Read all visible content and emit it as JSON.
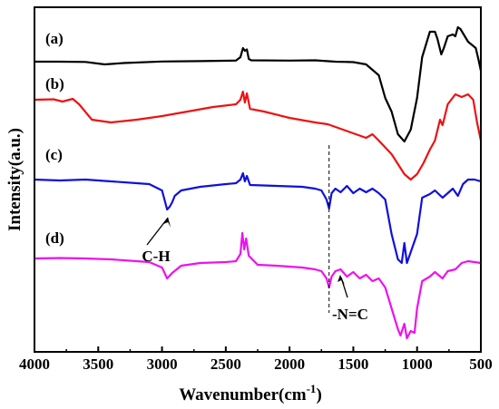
{
  "chart_data": {
    "type": "line",
    "title": "",
    "xlabel": "Wavenumber(cm",
    "xlabel_sup": "-1",
    "xlabel_close": ")",
    "ylabel": "Intensity(a.u.)",
    "xlim": [
      4000,
      500
    ],
    "x_reversed": true,
    "y_ticks": false,
    "x_ticks": [
      "4000",
      "3500",
      "3000",
      "2500",
      "2000",
      "1500",
      "1000",
      "500"
    ],
    "grid": false,
    "legend": "none",
    "series": [
      {
        "label": "(a)",
        "color": "#000000",
        "points": [
          [
            4000,
            0.0
          ],
          [
            3800,
            0.0
          ],
          [
            3600,
            -0.3
          ],
          [
            3450,
            -3.0
          ],
          [
            3300,
            -1.5
          ],
          [
            3000,
            0.2
          ],
          [
            2700,
            0.6
          ],
          [
            2420,
            1.2
          ],
          [
            2385,
            5.0
          ],
          [
            2365,
            15.0
          ],
          [
            2350,
            12.0
          ],
          [
            2335,
            13.5
          ],
          [
            2320,
            3.0
          ],
          [
            2300,
            1.5
          ],
          [
            2000,
            1.2
          ],
          [
            1800,
            1.5
          ],
          [
            1640,
            0.0
          ],
          [
            1500,
            -0.5
          ],
          [
            1400,
            -3.0
          ],
          [
            1300,
            -15.0
          ],
          [
            1250,
            -40.0
          ],
          [
            1200,
            -55.0
          ],
          [
            1150,
            -80.0
          ],
          [
            1100,
            -88.0
          ],
          [
            1050,
            -75.0
          ],
          [
            1000,
            -40.0
          ],
          [
            960,
            5.0
          ],
          [
            900,
            33.0
          ],
          [
            860,
            33.0
          ],
          [
            840,
            25.0
          ],
          [
            810,
            8.0
          ],
          [
            790,
            15.0
          ],
          [
            760,
            28.0
          ],
          [
            720,
            30.0
          ],
          [
            700,
            28.0
          ],
          [
            680,
            38.0
          ],
          [
            660,
            36.0
          ],
          [
            600,
            22.0
          ],
          [
            540,
            15.0
          ],
          [
            515,
            0.0
          ],
          [
            500,
            -10.0
          ]
        ]
      },
      {
        "label": "(b)",
        "color": "#ee1111",
        "points": [
          [
            4000,
            0.0
          ],
          [
            3850,
            0.5
          ],
          [
            3780,
            -2.0
          ],
          [
            3700,
            1.0
          ],
          [
            3650,
            -5.0
          ],
          [
            3550,
            -22.0
          ],
          [
            3400,
            -25.0
          ],
          [
            3200,
            -22.0
          ],
          [
            3000,
            -18.0
          ],
          [
            2800,
            -13.0
          ],
          [
            2600,
            -8.0
          ],
          [
            2420,
            -5.0
          ],
          [
            2385,
            0.0
          ],
          [
            2365,
            9.0
          ],
          [
            2350,
            -3.0
          ],
          [
            2335,
            7.0
          ],
          [
            2310,
            -10.0
          ],
          [
            2200,
            -13.0
          ],
          [
            2000,
            -20.0
          ],
          [
            1800,
            -25.0
          ],
          [
            1700,
            -27.0
          ],
          [
            1600,
            -32.0
          ],
          [
            1500,
            -37.0
          ],
          [
            1400,
            -42.0
          ],
          [
            1350,
            -38.0
          ],
          [
            1300,
            -45.0
          ],
          [
            1200,
            -60.0
          ],
          [
            1100,
            -82.0
          ],
          [
            1050,
            -88.0
          ],
          [
            1000,
            -82.0
          ],
          [
            950,
            -70.0
          ],
          [
            900,
            -55.0
          ],
          [
            860,
            -45.0
          ],
          [
            820,
            -22.0
          ],
          [
            800,
            -28.0
          ],
          [
            760,
            -5.0
          ],
          [
            700,
            6.0
          ],
          [
            650,
            3.0
          ],
          [
            600,
            6.0
          ],
          [
            560,
            0.0
          ],
          [
            530,
            -25.0
          ],
          [
            500,
            -45.0
          ]
        ]
      },
      {
        "label": "(c)",
        "color": "#1010dd",
        "points": [
          [
            4000,
            0.0
          ],
          [
            3800,
            -1.0
          ],
          [
            3600,
            0.0
          ],
          [
            3400,
            -2.0
          ],
          [
            3200,
            -4.0
          ],
          [
            3100,
            -5.0
          ],
          [
            3000,
            -12.0
          ],
          [
            2960,
            -33.0
          ],
          [
            2940,
            -30.0
          ],
          [
            2920,
            -25.0
          ],
          [
            2900,
            -18.0
          ],
          [
            2850,
            -12.0
          ],
          [
            2700,
            -8.0
          ],
          [
            2500,
            -5.0
          ],
          [
            2420,
            -4.0
          ],
          [
            2385,
            0.0
          ],
          [
            2365,
            7.0
          ],
          [
            2350,
            -2.0
          ],
          [
            2335,
            4.0
          ],
          [
            2310,
            -6.0
          ],
          [
            2100,
            -7.0
          ],
          [
            1900,
            -8.0
          ],
          [
            1800,
            -10.0
          ],
          [
            1750,
            -12.0
          ],
          [
            1710,
            -22.0
          ],
          [
            1690,
            -32.0
          ],
          [
            1670,
            -15.0
          ],
          [
            1640,
            -10.0
          ],
          [
            1600,
            -14.0
          ],
          [
            1550,
            -7.0
          ],
          [
            1500,
            -15.0
          ],
          [
            1450,
            -10.0
          ],
          [
            1400,
            -14.0
          ],
          [
            1350,
            -10.0
          ],
          [
            1300,
            -15.0
          ],
          [
            1250,
            -22.0
          ],
          [
            1200,
            -60.0
          ],
          [
            1150,
            -88.0
          ],
          [
            1120,
            -92.0
          ],
          [
            1100,
            -70.0
          ],
          [
            1080,
            -92.0
          ],
          [
            1050,
            -80.0
          ],
          [
            1000,
            -60.0
          ],
          [
            960,
            -20.0
          ],
          [
            900,
            -16.0
          ],
          [
            860,
            -12.0
          ],
          [
            800,
            -20.0
          ],
          [
            760,
            -15.0
          ],
          [
            720,
            -10.0
          ],
          [
            680,
            -18.0
          ],
          [
            640,
            -5.0
          ],
          [
            600,
            0.0
          ],
          [
            550,
            0.0
          ],
          [
            500,
            -2.0
          ]
        ]
      },
      {
        "label": "(d)",
        "color": "#ee11ee",
        "points": [
          [
            4000,
            0.0
          ],
          [
            3800,
            0.5
          ],
          [
            3600,
            0.0
          ],
          [
            3400,
            -1.0
          ],
          [
            3200,
            -3.0
          ],
          [
            3100,
            -4.0
          ],
          [
            3000,
            -10.0
          ],
          [
            2960,
            -22.0
          ],
          [
            2920,
            -16.0
          ],
          [
            2850,
            -8.0
          ],
          [
            2700,
            -5.0
          ],
          [
            2500,
            -4.0
          ],
          [
            2420,
            -3.0
          ],
          [
            2385,
            5.0
          ],
          [
            2370,
            28.0
          ],
          [
            2355,
            10.0
          ],
          [
            2340,
            22.0
          ],
          [
            2320,
            3.0
          ],
          [
            2250,
            -7.0
          ],
          [
            2100,
            -8.0
          ],
          [
            1900,
            -10.0
          ],
          [
            1800,
            -12.0
          ],
          [
            1750,
            -14.0
          ],
          [
            1710,
            -22.0
          ],
          [
            1690,
            -32.0
          ],
          [
            1670,
            -20.0
          ],
          [
            1640,
            -14.0
          ],
          [
            1600,
            -12.0
          ],
          [
            1550,
            -20.0
          ],
          [
            1500,
            -15.0
          ],
          [
            1450,
            -22.0
          ],
          [
            1400,
            -18.0
          ],
          [
            1350,
            -25.0
          ],
          [
            1300,
            -22.0
          ],
          [
            1250,
            -32.0
          ],
          [
            1200,
            -55.0
          ],
          [
            1150,
            -78.0
          ],
          [
            1130,
            -85.0
          ],
          [
            1100,
            -72.0
          ],
          [
            1080,
            -88.0
          ],
          [
            1050,
            -80.0
          ],
          [
            1020,
            -82.0
          ],
          [
            1000,
            -55.0
          ],
          [
            960,
            -25.0
          ],
          [
            900,
            -20.0
          ],
          [
            860,
            -15.0
          ],
          [
            800,
            -22.0
          ],
          [
            760,
            -14.0
          ],
          [
            700,
            -12.0
          ],
          [
            650,
            -5.0
          ],
          [
            600,
            -3.0
          ],
          [
            550,
            -4.0
          ],
          [
            500,
            -5.0
          ]
        ]
      }
    ],
    "annotations": [
      {
        "text": "C-H",
        "x": 2960
      },
      {
        "text": "-N=C",
        "x": 1690
      }
    ]
  }
}
